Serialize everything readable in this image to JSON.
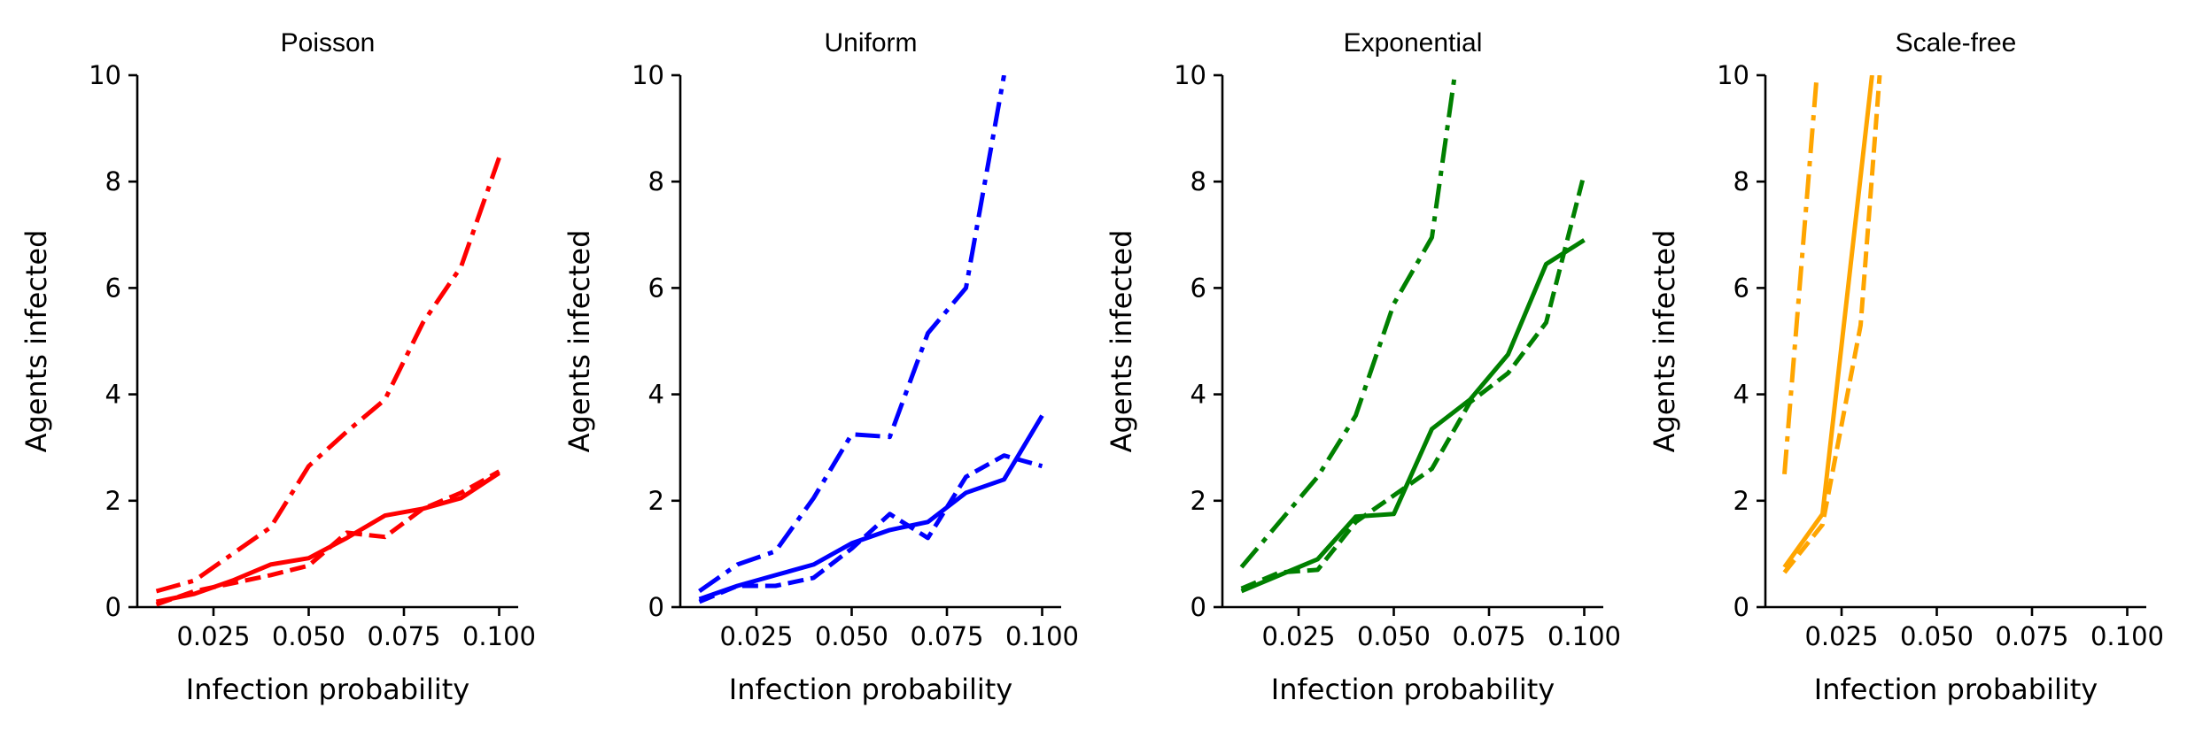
{
  "chart_data": [
    {
      "type": "line",
      "title": "Poisson",
      "xlabel": "Infection probability",
      "ylabel": "Agents infected",
      "xlim": [
        0.005,
        0.105
      ],
      "ylim": [
        0,
        10
      ],
      "xticks": [
        0.025,
        0.05,
        0.075,
        0.1
      ],
      "xtick_labels": [
        "0.025",
        "0.050",
        "0.075",
        "0.100"
      ],
      "yticks": [
        0,
        2,
        4,
        6,
        8,
        10
      ],
      "ytick_labels": [
        "0",
        "2",
        "4",
        "6",
        "8",
        "10"
      ],
      "color": "#ff0000",
      "grid": false,
      "series": [
        {
          "style": "solid",
          "x": [
            0.01,
            0.02,
            0.03,
            0.04,
            0.05,
            0.06,
            0.07,
            0.08,
            0.09,
            0.1
          ],
          "values": [
            0.1,
            0.25,
            0.5,
            0.8,
            0.92,
            1.3,
            1.72,
            1.85,
            2.05,
            2.52
          ]
        },
        {
          "style": "dashed",
          "x": [
            0.01,
            0.02,
            0.03,
            0.04,
            0.05,
            0.06,
            0.07,
            0.08,
            0.09,
            0.1
          ],
          "values": [
            0.05,
            0.3,
            0.45,
            0.6,
            0.78,
            1.4,
            1.32,
            1.85,
            2.15,
            2.55
          ]
        },
        {
          "style": "dashdot",
          "x": [
            0.01,
            0.02,
            0.03,
            0.04,
            0.05,
            0.06,
            0.07,
            0.08,
            0.09,
            0.1
          ],
          "values": [
            0.3,
            0.5,
            1.0,
            1.5,
            2.65,
            3.3,
            3.9,
            5.35,
            6.4,
            8.45
          ]
        }
      ]
    },
    {
      "type": "line",
      "title": "Uniform",
      "xlabel": "Infection probability",
      "ylabel": "Agents infected",
      "xlim": [
        0.005,
        0.105
      ],
      "ylim": [
        0,
        10
      ],
      "xticks": [
        0.025,
        0.05,
        0.075,
        0.1
      ],
      "xtick_labels": [
        "0.025",
        "0.050",
        "0.075",
        "0.100"
      ],
      "yticks": [
        0,
        2,
        4,
        6,
        8,
        10
      ],
      "ytick_labels": [
        "0",
        "2",
        "4",
        "6",
        "8",
        "10"
      ],
      "color": "#0000ff",
      "grid": false,
      "series": [
        {
          "style": "solid",
          "x": [
            0.01,
            0.02,
            0.03,
            0.04,
            0.05,
            0.06,
            0.07,
            0.08,
            0.09,
            0.1
          ],
          "values": [
            0.15,
            0.4,
            0.6,
            0.8,
            1.2,
            1.45,
            1.6,
            2.15,
            2.4,
            3.6
          ]
        },
        {
          "style": "dashed",
          "x": [
            0.01,
            0.02,
            0.03,
            0.04,
            0.05,
            0.06,
            0.07,
            0.08,
            0.09,
            0.1
          ],
          "values": [
            0.1,
            0.4,
            0.4,
            0.55,
            1.1,
            1.75,
            1.3,
            2.45,
            2.85,
            2.65
          ]
        },
        {
          "style": "dashdot",
          "x": [
            0.01,
            0.02,
            0.03,
            0.04,
            0.05,
            0.06,
            0.07,
            0.08,
            0.09
          ],
          "values": [
            0.3,
            0.8,
            1.05,
            2.05,
            3.25,
            3.2,
            5.15,
            6.0,
            10.0
          ]
        }
      ]
    },
    {
      "type": "line",
      "title": "Exponential",
      "xlabel": "Infection probability",
      "ylabel": "Agents infected",
      "xlim": [
        0.005,
        0.105
      ],
      "ylim": [
        0,
        10
      ],
      "xticks": [
        0.025,
        0.05,
        0.075,
        0.1
      ],
      "xtick_labels": [
        "0.025",
        "0.050",
        "0.075",
        "0.100"
      ],
      "yticks": [
        0,
        2,
        4,
        6,
        8,
        10
      ],
      "ytick_labels": [
        "0",
        "2",
        "4",
        "6",
        "8",
        "10"
      ],
      "color": "#008000",
      "grid": false,
      "series": [
        {
          "style": "solid",
          "x": [
            0.01,
            0.02,
            0.03,
            0.04,
            0.05,
            0.06,
            0.07,
            0.08,
            0.09,
            0.1
          ],
          "values": [
            0.3,
            0.6,
            0.9,
            1.7,
            1.75,
            3.35,
            3.9,
            4.75,
            6.45,
            6.9
          ]
        },
        {
          "style": "dashed",
          "x": [
            0.01,
            0.02,
            0.03,
            0.04,
            0.05,
            0.06,
            0.07,
            0.08,
            0.09,
            0.1
          ],
          "values": [
            0.35,
            0.65,
            0.7,
            1.6,
            2.1,
            2.6,
            3.85,
            4.4,
            5.35,
            8.15
          ]
        },
        {
          "style": "dashdot",
          "x": [
            0.01,
            0.02,
            0.03,
            0.04,
            0.05,
            0.06,
            0.066
          ],
          "values": [
            0.75,
            1.6,
            2.45,
            3.6,
            5.7,
            6.95,
            10.0
          ]
        }
      ]
    },
    {
      "type": "line",
      "title": "Scale-free",
      "xlabel": "Infection probability",
      "ylabel": "Agents infected",
      "xlim": [
        0.005,
        0.105
      ],
      "ylim": [
        0,
        10
      ],
      "xticks": [
        0.025,
        0.05,
        0.075,
        0.1
      ],
      "xtick_labels": [
        "0.025",
        "0.050",
        "0.075",
        "0.100"
      ],
      "yticks": [
        0,
        2,
        4,
        6,
        8,
        10
      ],
      "ytick_labels": [
        "0",
        "2",
        "4",
        "6",
        "8",
        "10"
      ],
      "color": "#ffa500",
      "grid": false,
      "series": [
        {
          "style": "solid",
          "x": [
            0.01,
            0.02,
            0.033
          ],
          "values": [
            0.75,
            1.75,
            10.0
          ]
        },
        {
          "style": "dashed",
          "x": [
            0.01,
            0.02,
            0.03,
            0.035
          ],
          "values": [
            0.65,
            1.55,
            5.3,
            10.0
          ]
        },
        {
          "style": "dashdot",
          "x": [
            0.01,
            0.0185
          ],
          "values": [
            2.5,
            10.0
          ]
        }
      ]
    }
  ]
}
